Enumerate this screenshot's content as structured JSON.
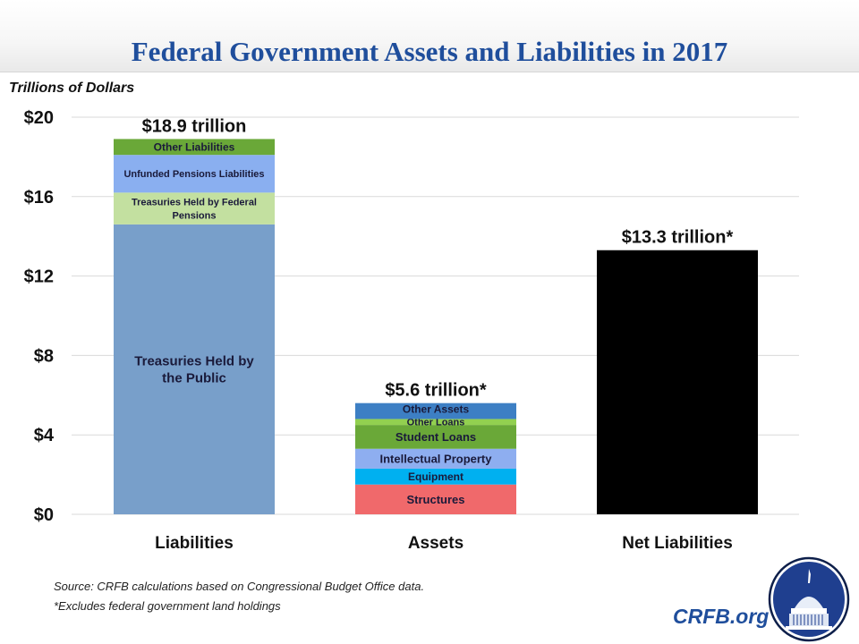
{
  "header": {
    "title": "Federal Government Assets and Liabilities in 2017"
  },
  "units_label": "Trillions of Dollars",
  "chart_data": {
    "type": "bar",
    "stacked": true,
    "title": "Federal Government Assets and Liabilities in 2017",
    "ylabel": "Trillions of Dollars",
    "xlabel": "",
    "ylim": [
      0,
      20
    ],
    "yticks": [
      0,
      4,
      8,
      12,
      16,
      20
    ],
    "ytick_labels": [
      "$0",
      "$4",
      "$8",
      "$12",
      "$16",
      "$20"
    ],
    "grid": true,
    "categories": [
      "Liabilities",
      "Assets",
      "Net Liabilities"
    ],
    "bars": [
      {
        "category": "Liabilities",
        "total_label": "$18.9 trillion",
        "segments": [
          {
            "name": "Treasuries Held by the Public",
            "lines": [
              "Treasuries Held by",
              "the Public"
            ],
            "value": 14.6,
            "color": "#789fca"
          },
          {
            "name": "Treasuries Held by Federal Pensions",
            "lines": [
              "Treasuries Held by Federal",
              "Pensions"
            ],
            "value": 1.6,
            "color": "#c3e0a0"
          },
          {
            "name": "Unfunded Pensions Liabilities",
            "lines": [
              "Unfunded Pensions Liabilities"
            ],
            "value": 1.9,
            "color": "#8aaff0"
          },
          {
            "name": "Other Liabilities",
            "lines": [
              "Other Liabilities"
            ],
            "value": 0.8,
            "color": "#6aa838"
          }
        ]
      },
      {
        "category": "Assets",
        "total_label": "$5.6 trillion*",
        "segments": [
          {
            "name": "Structures",
            "lines": [
              "Structures"
            ],
            "value": 1.5,
            "color": "#f0696b"
          },
          {
            "name": "Equipment",
            "lines": [
              "Equipment"
            ],
            "value": 0.8,
            "color": "#00b0f0"
          },
          {
            "name": "Intellectual Property",
            "lines": [
              "Intellectual Property"
            ],
            "value": 1.0,
            "color": "#8eaef0"
          },
          {
            "name": "Student Loans",
            "lines": [
              "Student Loans"
            ],
            "value": 1.2,
            "color": "#6aa838"
          },
          {
            "name": "Other Loans",
            "lines": [
              "Other Loans"
            ],
            "value": 0.3,
            "color": "#92d050"
          },
          {
            "name": "Other Assets",
            "lines": [
              "Other Assets"
            ],
            "value": 0.8,
            "color": "#3d7fc4"
          }
        ]
      },
      {
        "category": "Net Liabilities",
        "total_label": "$13.3 trillion*",
        "segments": [
          {
            "name": "Net Liabilities",
            "lines": [],
            "value": 13.3,
            "color": "#000000"
          }
        ]
      }
    ],
    "legend": "none (labels inside bars)"
  },
  "footer": {
    "source": "Source: CRFB calculations based on Congressional Budget Office data.",
    "footnote": "*Excludes federal government land holdings",
    "brand": "CRFB.org"
  },
  "colors": {
    "title": "#1f4e9c",
    "brand": "#1f4e9c",
    "logo_fill": "#1f3f8f"
  }
}
